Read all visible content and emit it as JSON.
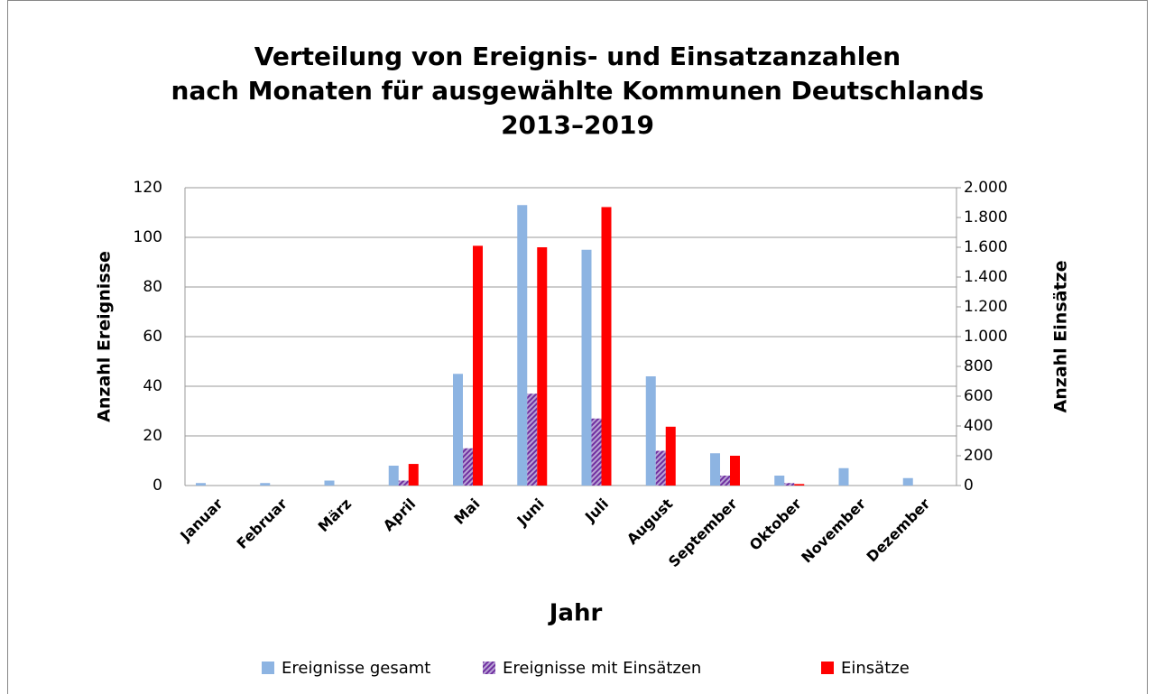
{
  "chart_data": {
    "type": "bar",
    "title": [
      "Verteilung von Ereignis- und Einsatzanzahlen",
      "nach Monaten für ausgewählte Kommunen Deutschlands",
      "2013–2019"
    ],
    "x_label": "Jahr",
    "y_label": "Anzahl Ereignisse",
    "y2_label": "Anzahl Einsätze",
    "categories": [
      "Januar",
      "Februar",
      "März",
      "April",
      "Mai",
      "Juni",
      "Juli",
      "August",
      "September",
      "Oktober",
      "November",
      "Dezember"
    ],
    "series": [
      {
        "name": "Ereignisse gesamt",
        "color": "#8db4e2",
        "values": [
          1,
          1,
          2,
          8,
          45,
          113,
          95,
          44,
          13,
          4,
          7,
          3
        ]
      },
      {
        "name": "Ereignisse mit Einsätzen",
        "color": "#7030a0",
        "pattern": "hatch",
        "values": [
          0,
          0,
          0,
          2,
          15,
          37,
          27,
          14,
          4,
          1,
          0,
          0
        ]
      },
      {
        "name": "Einsätze",
        "color": "#ff0000",
        "axis": "y2",
        "values": [
          0,
          0,
          0,
          145,
          1610,
          1600,
          1870,
          395,
          200,
          10,
          0,
          0
        ]
      }
    ],
    "ylim": [
      0,
      120
    ],
    "yticks": [
      0,
      20,
      40,
      60,
      80,
      100,
      120
    ],
    "y2lim": [
      0,
      2000
    ],
    "y2ticks": [
      0,
      200,
      400,
      600,
      800,
      {
        "value": 1000,
        "label": "1.000"
      },
      {
        "value": 1200,
        "label": "1.200"
      },
      {
        "value": 1400,
        "label": "1.400"
      },
      {
        "value": 1600,
        "label": "1.600"
      },
      {
        "value": 1800,
        "label": "1.800"
      },
      {
        "value": 2000,
        "label": "2.000"
      }
    ],
    "grid": true,
    "legend": "bottom"
  }
}
